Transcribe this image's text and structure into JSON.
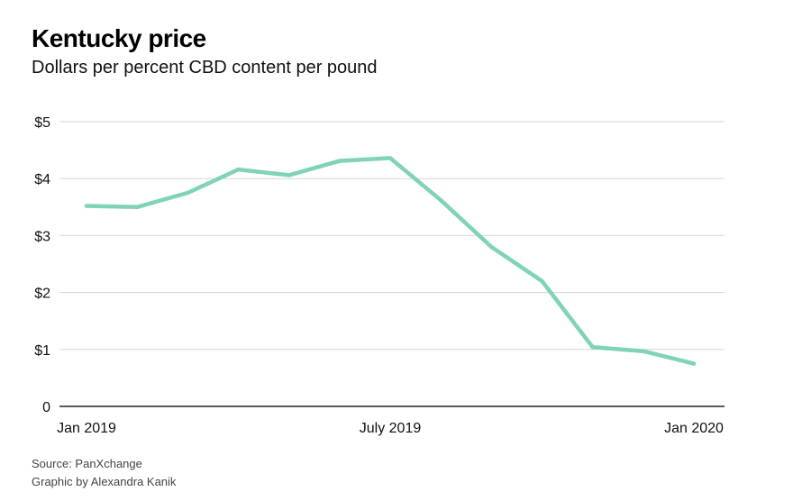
{
  "title": "Kentucky price",
  "subtitle": "Dollars per percent CBD content per pound",
  "footer": {
    "source": "Source: PanXchange",
    "credit": "Graphic by Alexandra Kanik"
  },
  "colors": {
    "line": "#7fd3b7",
    "grid": "#d6d6d6",
    "axis": "#222222"
  },
  "chart_data": {
    "type": "line",
    "title": "Kentucky price",
    "subtitle": "Dollars per percent CBD content per pound",
    "xlabel": "",
    "ylabel": "",
    "ylim": [
      0,
      5
    ],
    "xlim": [
      0,
      12
    ],
    "grid": true,
    "y_ticks": [
      {
        "value": 0,
        "label": "0"
      },
      {
        "value": 1,
        "label": "$1"
      },
      {
        "value": 2,
        "label": "$2"
      },
      {
        "value": 3,
        "label": "$3"
      },
      {
        "value": 4,
        "label": "$4"
      },
      {
        "value": 5,
        "label": "$5"
      }
    ],
    "x_ticks": [
      {
        "value": 0,
        "label": "Jan 2019"
      },
      {
        "value": 6,
        "label": "July 2019"
      },
      {
        "value": 12,
        "label": "Jan 2020"
      }
    ],
    "series": [
      {
        "name": "Kentucky price",
        "x": [
          0,
          1,
          2,
          3,
          4,
          5,
          6,
          7,
          8,
          9,
          10,
          11,
          12
        ],
        "values": [
          3.52,
          3.5,
          3.75,
          4.16,
          4.06,
          4.31,
          4.36,
          3.62,
          2.8,
          2.2,
          1.04,
          0.97,
          0.75
        ]
      }
    ]
  }
}
